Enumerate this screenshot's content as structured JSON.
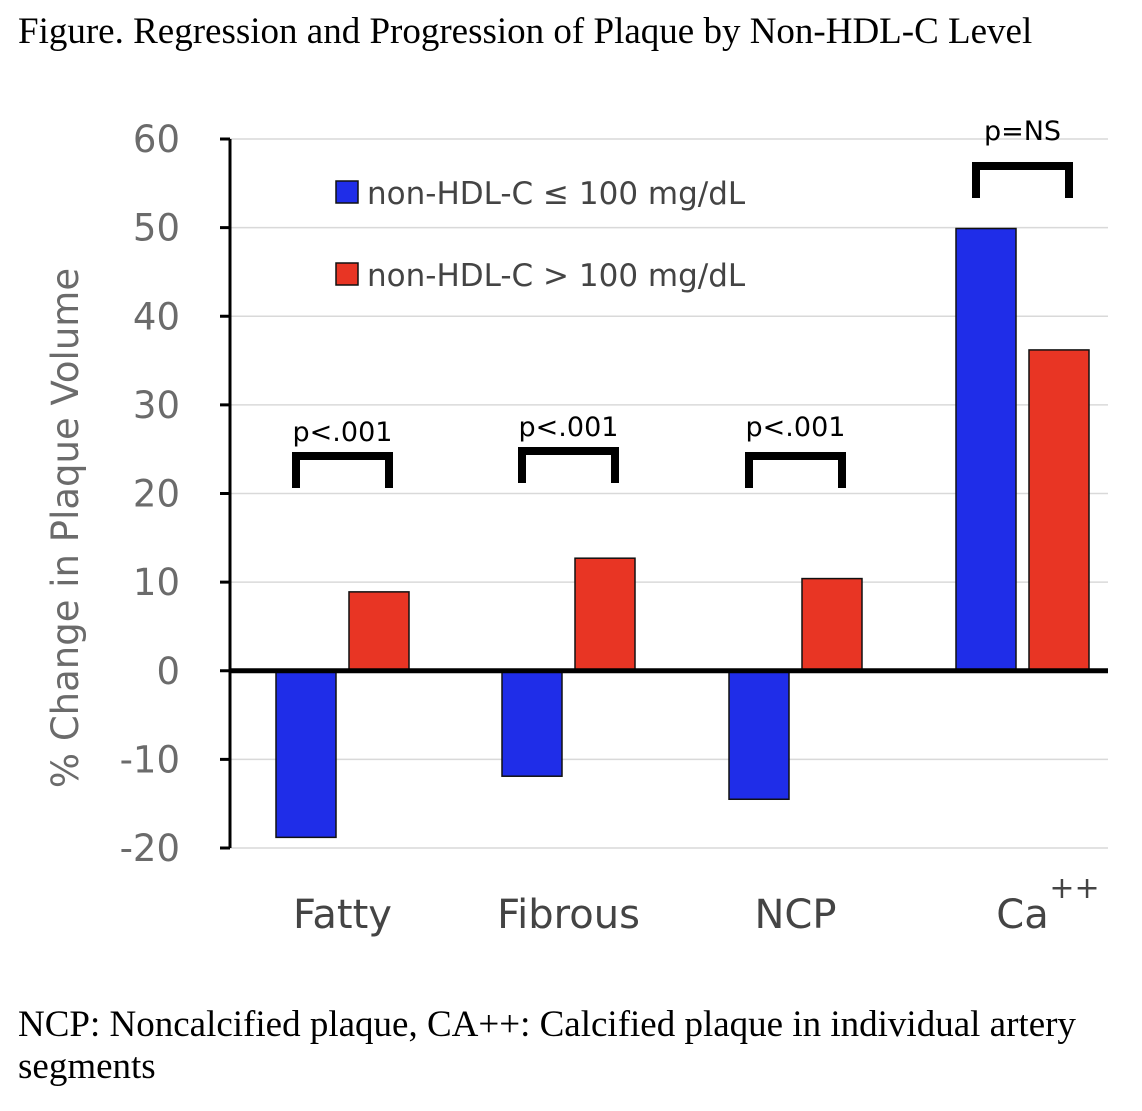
{
  "figure": {
    "title": "Figure. Regression and Progression of Plaque by Non-HDL-C Level",
    "caption": "NCP: Noncalcified plaque, CA++: Calcified plaque in individual artery segments"
  },
  "chart_data": {
    "type": "bar",
    "title": "",
    "xlabel": "",
    "ylabel": "% Change in Plaque Volume",
    "ylim": [
      -20,
      60
    ],
    "yticks": [
      60,
      50,
      40,
      30,
      20,
      10,
      0,
      -10,
      -20
    ],
    "grid": true,
    "legend_position": "top-left",
    "categories": [
      "Fatty",
      "Fibrous",
      "NCP",
      "Ca"
    ],
    "category_superscripts": [
      "",
      "",
      "",
      "++"
    ],
    "series": [
      {
        "name": "non-HDL-C ≤ 100 mg/dL",
        "color": "#1f2de8",
        "values": [
          -18.8,
          -11.9,
          -14.5,
          49.9
        ]
      },
      {
        "name": "non-HDL-C > 100 mg/dL",
        "color": "#e83524",
        "values": [
          8.9,
          12.7,
          10.4,
          36.2
        ]
      }
    ],
    "significance": [
      "p<.001",
      "p<.001",
      "p<.001",
      "p=NS"
    ]
  }
}
